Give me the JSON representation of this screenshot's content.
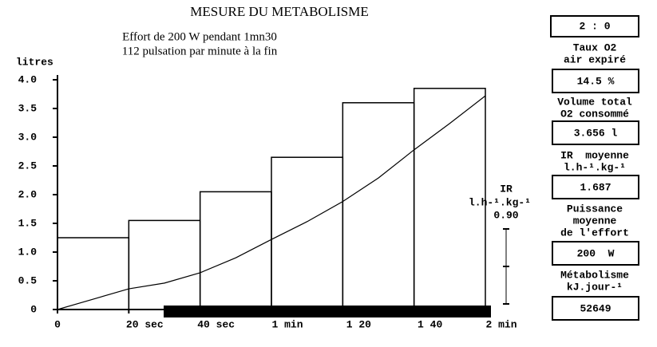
{
  "chart_data": {
    "type": "histogram",
    "title": "MESURE DU METABOLISME",
    "subtitle": [
      "Effort de 200 W pendant 1mn30",
      "112 pulsation par minute à la fin"
    ],
    "ylabel": "litres",
    "bins": [
      0,
      20,
      40,
      60,
      80,
      100,
      120
    ],
    "values": [
      1.25,
      1.55,
      2.05,
      2.65,
      3.6,
      3.85
    ],
    "color": "#000000",
    "curve": {
      "x": [
        0,
        10,
        20,
        30,
        40,
        50,
        60,
        70,
        80,
        90,
        100,
        110,
        120
      ],
      "values": [
        0,
        0.18,
        0.36,
        0.46,
        0.64,
        0.9,
        1.22,
        1.53,
        1.88,
        2.29,
        2.78,
        3.24,
        3.72
      ]
    },
    "xlim": [
      0,
      120
    ],
    "xticks": [
      0,
      {
        "value": 20,
        "label": "20 sec"
      },
      {
        "value": 40,
        "label": "40 sec"
      },
      {
        "value": 60,
        "label": "1 min"
      },
      {
        "value": 80,
        "label": "1 20"
      },
      {
        "value": 100,
        "label": "1 40"
      },
      {
        "value": 120,
        "label": "2 min"
      }
    ],
    "ylim": [
      0,
      4
    ],
    "yticks": [
      0,
      0.5,
      {
        "value": 1,
        "label": "1.0"
      },
      1.5,
      {
        "value": 2,
        "label": "2.0"
      },
      2.5,
      {
        "value": 3,
        "label": "3.0"
      },
      3.5,
      {
        "value": 4,
        "label": "4.0"
      }
    ]
  },
  "gauge": {
    "label": "IR",
    "unit": "l.h-¹.kg-¹",
    "value": "0.90"
  },
  "panel": {
    "time": "2 : 0",
    "items": [
      {
        "label": [
          "Taux O2",
          "air expiré"
        ],
        "value": "14.5 %"
      },
      {
        "label": [
          "Volume total",
          "O2 consommé"
        ],
        "value": "3.656 l"
      },
      {
        "label": [
          "IR  moyenne",
          "l.h-¹.kg-¹"
        ],
        "value": "1.687"
      },
      {
        "label": [
          "Puissance",
          "moyenne",
          "de l'effort"
        ],
        "value": "200  W"
      },
      {
        "label": [
          "Métabolisme",
          "kJ.jour-¹"
        ],
        "value": "52649"
      }
    ]
  }
}
